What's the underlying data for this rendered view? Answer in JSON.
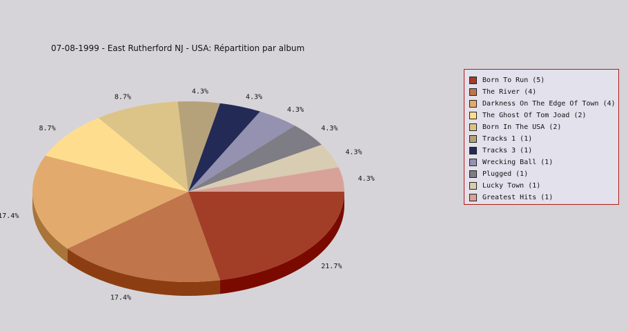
{
  "chart_data": {
    "type": "pie",
    "title": "07-08-1999 - East Rutherford NJ - USA:  Répartition par album",
    "slices": [
      {
        "label": "Born To Run (5)",
        "value": 5,
        "percent_label": "21.7%",
        "color": "#a23e28",
        "side_color": "#7a0a00"
      },
      {
        "label": "The River (4)",
        "value": 4,
        "percent_label": "17.4%",
        "color": "#c0754a",
        "side_color": "#8c3e12"
      },
      {
        "label": "Darkness On The Edge Of Town (4)",
        "value": 4,
        "percent_label": "17.4%",
        "color": "#e2aa6c",
        "side_color": "#a8743a"
      },
      {
        "label": "The Ghost Of Tom Joad (2)",
        "value": 2,
        "percent_label": "8.7%",
        "color": "#fede8e",
        "side_color": "#c4a25a"
      },
      {
        "label": "Born In The USA (2)",
        "value": 2,
        "percent_label": "8.7%",
        "color": "#dcc488",
        "side_color": "#a48e54"
      },
      {
        "label": "Tracks 1 (1)",
        "value": 1,
        "percent_label": "4.3%",
        "color": "#b6a27a",
        "side_color": "#84724c"
      },
      {
        "label": "Tracks 3 (1)",
        "value": 1,
        "percent_label": "4.3%",
        "color": "#242a56",
        "side_color": "#10143a"
      },
      {
        "label": "Wrecking Ball (1)",
        "value": 1,
        "percent_label": "4.3%",
        "color": "#9492b0",
        "side_color": "#66647e"
      },
      {
        "label": "Plugged (1)",
        "value": 1,
        "percent_label": "4.3%",
        "color": "#7e7c84",
        "side_color": "#55535a"
      },
      {
        "label": "Lucky Town (1)",
        "value": 1,
        "percent_label": "4.3%",
        "color": "#d8ccb2",
        "side_color": "#a89c84"
      },
      {
        "label": "Greatest Hits (1)",
        "value": 1,
        "percent_label": "4.3%",
        "color": "#d8a298",
        "side_color": "#a4726a"
      }
    ]
  }
}
